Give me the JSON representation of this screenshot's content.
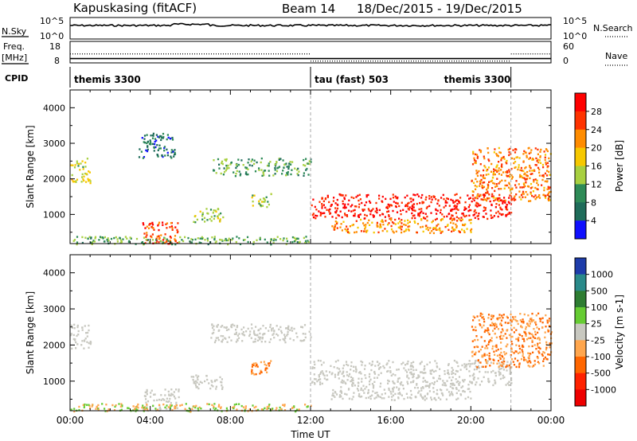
{
  "header": {
    "station": "Kapuskasing (fitACF)",
    "beam": "Beam 14",
    "date_range": "18/Dec/2015 - 19/Dec/2015"
  },
  "top_panels": {
    "nsky_label": "N.Sky",
    "nsearch_label": "N.Search",
    "nsky_left_ticks": [
      "10^5",
      "10^0"
    ],
    "nsky_right_ticks": [
      "10^5",
      "10^0"
    ],
    "freq_label": "Freq.",
    "freq_unit": "[MHz]",
    "freq_ticks": [
      "18",
      "8"
    ],
    "nave_label": "Nave",
    "nave_ticks": [
      "60",
      "0"
    ],
    "cpid_label": "CPID",
    "cpid_segments": [
      {
        "label": "themis 3300",
        "start_h": 0,
        "end_h": 12
      },
      {
        "label": "tau (fast) 503",
        "start_h": 12,
        "end_h": 22
      },
      {
        "label": "themis 3300",
        "start_h": 22,
        "end_h": 24
      }
    ],
    "freq_level_mhz": 10,
    "nave_level": [
      {
        "start_h": 0,
        "end_h": 12,
        "value": 25
      },
      {
        "start_h": 12,
        "end_h": 22,
        "value": 5
      },
      {
        "start_h": 22,
        "end_h": 24,
        "value": 25
      }
    ]
  },
  "chart_data": [
    {
      "type": "heatmap",
      "name": "power",
      "ylabel": "Slant Range [km]",
      "xlabel": "Time UT",
      "xlim_hours": [
        0,
        24
      ],
      "ylim_km": [
        180,
        4500
      ],
      "y_ticks": [
        1000,
        2000,
        3000,
        4000
      ],
      "x_tick_labels": [
        "00:00",
        "04:00",
        "08:00",
        "12:00",
        "16:00",
        "20:00",
        "00:00"
      ],
      "colorbar": {
        "label": "Power [dB]",
        "tick_labels": [
          "28",
          "24",
          "20",
          "16",
          "12",
          "8",
          "4"
        ],
        "colors": [
          "#ff0000",
          "#ff3300",
          "#ff8c00",
          "#f6c800",
          "#a8d040",
          "#2e8b57",
          "#1f6c5a",
          "#1010ff"
        ]
      },
      "echo_regions": [
        {
          "t": [
            0.0,
            1.0
          ],
          "r": [
            1900,
            2600
          ],
          "level": 0.5
        },
        {
          "t": [
            3.6,
            5.4
          ],
          "r": [
            200,
            800
          ],
          "level": 0.85
        },
        {
          "t": [
            3.4,
            5.2
          ],
          "r": [
            2600,
            3300
          ],
          "level": 0.15
        },
        {
          "t": [
            6.0,
            7.6
          ],
          "r": [
            800,
            1200
          ],
          "level": 0.4
        },
        {
          "t": [
            7.0,
            12.0
          ],
          "r": [
            2100,
            2600
          ],
          "level": 0.3
        },
        {
          "t": [
            9.0,
            10.0
          ],
          "r": [
            1200,
            1600
          ],
          "level": 0.45
        },
        {
          "t": [
            12.0,
            22.0
          ],
          "r": [
            900,
            1600
          ],
          "level": 0.95
        },
        {
          "t": [
            13.0,
            20.0
          ],
          "r": [
            500,
            900
          ],
          "level": 0.7
        },
        {
          "t": [
            20.0,
            24.0
          ],
          "r": [
            1400,
            2900
          ],
          "level": 0.75
        },
        {
          "t": [
            0.0,
            12.0
          ],
          "r": [
            180,
            400
          ],
          "level": 0.35
        }
      ]
    },
    {
      "type": "heatmap",
      "name": "velocity",
      "ylabel": "Slant Range [km]",
      "xlabel": "Time UT",
      "xlim_hours": [
        0,
        24
      ],
      "ylim_km": [
        180,
        4500
      ],
      "y_ticks": [
        1000,
        2000,
        3000,
        4000
      ],
      "x_tick_labels": [
        "00:00",
        "04:00",
        "08:00",
        "12:00",
        "16:00",
        "20:00",
        "00:00"
      ],
      "colorbar": {
        "label": "Velocity [m s-1]",
        "tick_labels": [
          "1000",
          "500",
          "100",
          "25",
          "-25",
          "-100",
          "-500",
          "-1000"
        ],
        "colors": [
          "#1e3caa",
          "#2a8a8a",
          "#2e7d32",
          "#66cc33",
          "#c8c8c0",
          "#ffa64d",
          "#ff6600",
          "#ff2200",
          "#ee0000"
        ]
      },
      "echo_regions": [
        {
          "t": [
            0.0,
            1.0
          ],
          "r": [
            1900,
            2600
          ],
          "v": 0
        },
        {
          "t": [
            3.6,
            5.4
          ],
          "r": [
            200,
            800
          ],
          "v": 0
        },
        {
          "t": [
            6.0,
            7.6
          ],
          "r": [
            800,
            1200
          ],
          "v": 0
        },
        {
          "t": [
            7.0,
            12.0
          ],
          "r": [
            2100,
            2600
          ],
          "v": 0
        },
        {
          "t": [
            9.0,
            10.0
          ],
          "r": [
            1200,
            1600
          ],
          "v": -300
        },
        {
          "t": [
            12.0,
            22.0
          ],
          "r": [
            900,
            1600
          ],
          "v": 0
        },
        {
          "t": [
            13.0,
            20.0
          ],
          "r": [
            500,
            900
          ],
          "v": 0
        },
        {
          "t": [
            20.0,
            24.0
          ],
          "r": [
            1400,
            2900
          ],
          "v": -300
        },
        {
          "t": [
            0.0,
            12.0
          ],
          "r": [
            180,
            400
          ],
          "v": -60
        }
      ]
    }
  ]
}
